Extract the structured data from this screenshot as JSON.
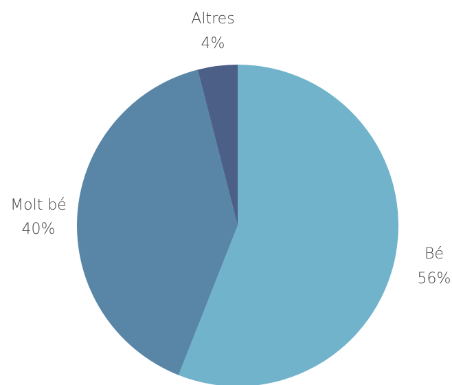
{
  "chart_data": {
    "type": "pie",
    "title": "",
    "start_angle_deg": 0,
    "direction": "clockwise",
    "slices": [
      {
        "label": "Bé",
        "value": 56,
        "value_label": "56%",
        "color": "#72b3cc"
      },
      {
        "label": "Molt bé",
        "value": 40,
        "value_label": "40%",
        "color": "#5986a7"
      },
      {
        "label": "Altres",
        "value": 4,
        "value_label": "4%",
        "color": "#4b5f87"
      }
    ]
  }
}
